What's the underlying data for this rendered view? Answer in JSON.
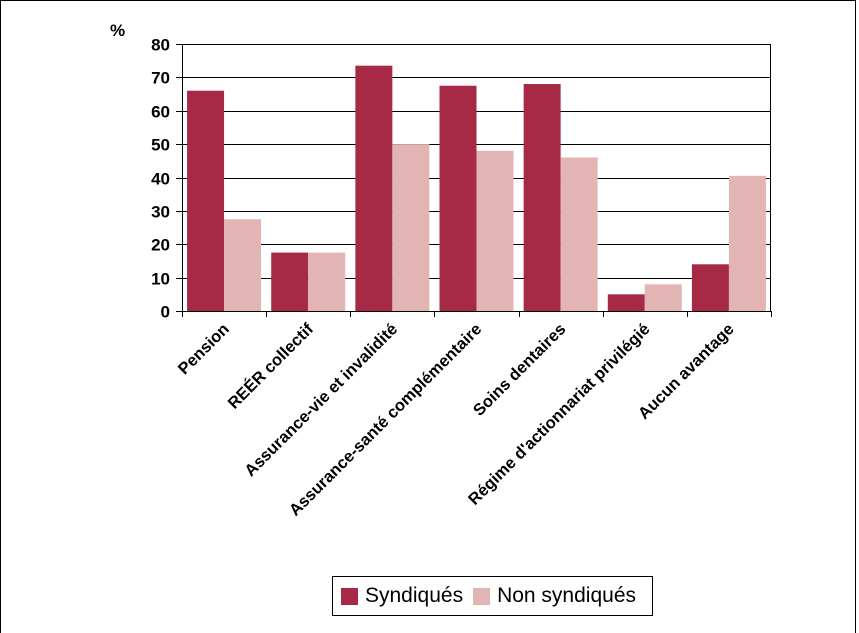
{
  "chart_data": {
    "type": "bar",
    "unit_label": "%",
    "categories": [
      "Pension",
      "REÉR collectif",
      "Assurance-vie et invalidité",
      "Assurance-santé complémentaire",
      "Soins dentaires",
      "Régime d'actionnariat privilégié",
      "Aucun avantage"
    ],
    "series": [
      {
        "name": "Syndiqués",
        "color": "#a62a45",
        "values": [
          66,
          17.5,
          73.5,
          67.5,
          68,
          5,
          14
        ]
      },
      {
        "name": "Non syndiqués",
        "color": "#e3b4b4",
        "values": [
          27.5,
          17.5,
          50,
          48,
          46,
          8,
          40.5
        ]
      }
    ],
    "ylim": [
      0,
      80
    ],
    "yticks": [
      0,
      10,
      20,
      30,
      40,
      50,
      60,
      70,
      80
    ],
    "grid": true,
    "legend_position": "bottom"
  }
}
